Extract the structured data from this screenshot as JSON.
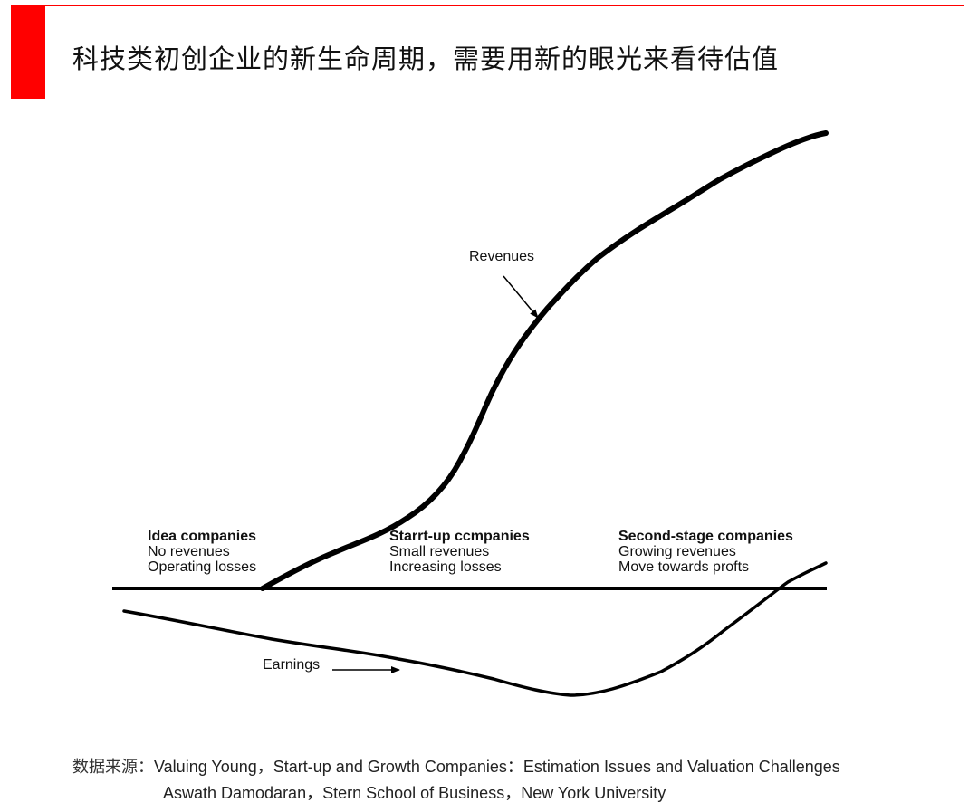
{
  "title": "科技类初创企业的新生命周期，需要用新的眼光来看待估值",
  "diagram": {
    "revenues_label": "Revenues",
    "earnings_label": "Earnings",
    "stages": [
      {
        "heading": "Idea companies",
        "line1": "No revenues",
        "line2": "Operating losses"
      },
      {
        "heading": "Starrt-up ccmpanies",
        "line1": "Small revenues",
        "line2": "Increasing losses"
      },
      {
        "heading": "Second-stage companies",
        "line1": "Growing revenues",
        "line2": "Move towards profts"
      }
    ]
  },
  "source": {
    "prefix": "数据来源：",
    "line1": "Valuing Young，Start-up and Growth Companies：Estimation Issues and Valuation Challenges",
    "line2": "Aswath Damodaran，Stern School of Business，New York University"
  },
  "colors": {
    "accent": "#ff0000",
    "ink": "#000000"
  }
}
